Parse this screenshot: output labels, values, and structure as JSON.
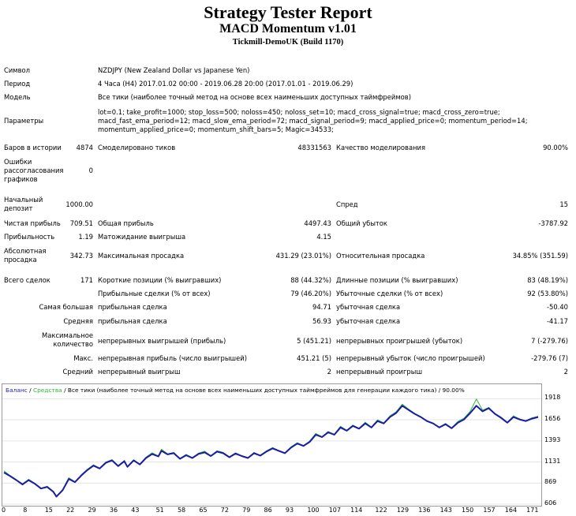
{
  "title": "Strategy Tester Report",
  "expert": "MACD Momentum v1.01",
  "server": "Tickmill-DemoUK (Build 1170)",
  "info": {
    "symbol_label": "Символ",
    "symbol_value": "NZDJPY (New Zealand Dollar vs Japanese Yen)",
    "period_label": "Период",
    "period_value": "4 Часа (H4) 2017.01.02 00:00 - 2019.06.28 20:00 (2017.01.01 - 2019.06.29)",
    "model_label": "Модель",
    "model_value": "Все тики (наиболее точный метод на основе всех наименьших доступных таймфреймов)",
    "params_label": "Параметры",
    "params_value": "lot=0.1; take_profit=1000; stop_loss=500; noloss=450; noloss_set=10; macd_cross_signal=true; macd_cross_zero=true; macd_fast_ema_period=12; macd_slow_ema_period=72; macd_signal_period=9; macd_applied_price=0; momentum_period=14; momentum_applied_price=0; momentum_shift_bars=5; Magic=34533;"
  },
  "stats": {
    "bars_label": "Баров в истории",
    "bars_value": "4874",
    "ticks_label": "Смоделировано тиков",
    "ticks_value": "48331563",
    "quality_label": "Качество моделирования",
    "quality_value": "90.00%",
    "errors_label": "Ошибки рассогласования графиков",
    "errors_value": "0",
    "deposit_label": "Начальный депозит",
    "deposit_value": "1000.00",
    "spread_label": "Спред",
    "spread_value": "15",
    "net_label": "Чистая прибыль",
    "net_value": "709.51",
    "gross_profit_label": "Общая прибыль",
    "gross_profit_value": "4497.43",
    "gross_loss_label": "Общий убыток",
    "gross_loss_value": "-3787.92",
    "pf_label": "Прибыльность",
    "pf_value": "1.19",
    "payoff_label": "Матожидание выигрыша",
    "payoff_value": "4.15",
    "abs_dd_label": "Абсолютная просадка",
    "abs_dd_value": "342.73",
    "max_dd_label": "Максимальная просадка",
    "max_dd_value": "431.29 (23.01%)",
    "rel_dd_label": "Относительная просадка",
    "rel_dd_value": "34.85% (351.59)",
    "total_label": "Всего сделок",
    "total_value": "171",
    "short_label": "Короткие позиции (% выигравших)",
    "short_value": "88 (44.32%)",
    "long_label": "Длинные позиции (% выигравших)",
    "long_value": "83 (48.19%)",
    "profit_trades_label": "Прибыльные сделки (% от всех)",
    "profit_trades_value": "79 (46.20%)",
    "loss_trades_label": "Убыточные сделки (% от всех)",
    "loss_trades_value": "92 (53.80%)",
    "largest_label": "Самая большая",
    "largest_profit_label": "прибыльная сделка",
    "largest_profit_value": "94.71",
    "largest_loss_label": "убыточная сделка",
    "largest_loss_value": "-50.40",
    "average_label": "Средняя",
    "average_profit_label": "прибыльная сделка",
    "average_profit_value": "56.93",
    "average_loss_label": "убыточная сделка",
    "average_loss_value": "-41.17",
    "maxcount_label": "Максимальное количество",
    "maxcount_wins_label": "непрерывных выигрышей (прибыль)",
    "maxcount_wins_value": "5 (451.21)",
    "maxcount_losses_label": "непрерывных проигрышей (убыток)",
    "maxcount_losses_value": "7 (-279.76)",
    "max_label": "Макс.",
    "max_profit_label": "непрерывная прибыль (число выигрышей)",
    "max_profit_value": "451.21 (5)",
    "max_loss_label": "непрерывный убыток (число проигрышей)",
    "max_loss_value": "-279.76 (7)",
    "avg_label": "Средний",
    "avg_wins_label": "непрерывный выигрыш",
    "avg_wins_value": "2",
    "avg_losses_label": "непрерывный проигрыш",
    "avg_losses_value": "2"
  },
  "colors": {
    "balance": "#1c1ca8",
    "equity": "#2db82d",
    "frame": "#9a9a9a",
    "grid": "#e4e4e4"
  },
  "chart_data": {
    "type": "line",
    "legend_balance": "Баланс",
    "legend_sep": " / ",
    "legend_equity": "Средства",
    "legend_text": " / Все тики (наиболее точный метод на основе всех наименьших доступных таймфреймов для генерации каждого тика) / 90.00%",
    "ylim": [
      606,
      2000
    ],
    "y_ticks": [
      "1918",
      "1656",
      "1393",
      "1131",
      "869",
      "606"
    ],
    "x_ticks": [
      "0",
      "8",
      "15",
      "22",
      "29",
      "36",
      "43",
      "51",
      "58",
      "65",
      "72",
      "79",
      "86",
      "93",
      "100",
      "107",
      "114",
      "122",
      "129",
      "136",
      "143",
      "150",
      "157",
      "164",
      "171"
    ],
    "xlim": [
      0,
      173
    ],
    "balance": [
      [
        0,
        1000
      ],
      [
        2,
        955
      ],
      [
        4,
        905
      ],
      [
        6,
        850
      ],
      [
        8,
        905
      ],
      [
        10,
        860
      ],
      [
        12,
        800
      ],
      [
        14,
        820
      ],
      [
        16,
        760
      ],
      [
        17,
        700
      ],
      [
        19,
        780
      ],
      [
        21,
        920
      ],
      [
        23,
        880
      ],
      [
        25,
        960
      ],
      [
        27,
        1030
      ],
      [
        29,
        1085
      ],
      [
        31,
        1050
      ],
      [
        33,
        1120
      ],
      [
        35,
        1150
      ],
      [
        37,
        1080
      ],
      [
        39,
        1140
      ],
      [
        40,
        1070
      ],
      [
        42,
        1150
      ],
      [
        44,
        1100
      ],
      [
        46,
        1180
      ],
      [
        48,
        1230
      ],
      [
        50,
        1200
      ],
      [
        51,
        1270
      ],
      [
        53,
        1225
      ],
      [
        55,
        1240
      ],
      [
        57,
        1170
      ],
      [
        59,
        1215
      ],
      [
        61,
        1180
      ],
      [
        63,
        1230
      ],
      [
        65,
        1250
      ],
      [
        67,
        1205
      ],
      [
        69,
        1260
      ],
      [
        71,
        1240
      ],
      [
        73,
        1190
      ],
      [
        75,
        1235
      ],
      [
        77,
        1205
      ],
      [
        79,
        1180
      ],
      [
        81,
        1240
      ],
      [
        83,
        1210
      ],
      [
        85,
        1260
      ],
      [
        87,
        1300
      ],
      [
        89,
        1270
      ],
      [
        91,
        1240
      ],
      [
        93,
        1310
      ],
      [
        95,
        1360
      ],
      [
        97,
        1330
      ],
      [
        99,
        1380
      ],
      [
        101,
        1470
      ],
      [
        103,
        1440
      ],
      [
        105,
        1500
      ],
      [
        107,
        1470
      ],
      [
        109,
        1560
      ],
      [
        111,
        1520
      ],
      [
        113,
        1580
      ],
      [
        115,
        1545
      ],
      [
        117,
        1610
      ],
      [
        119,
        1560
      ],
      [
        121,
        1640
      ],
      [
        123,
        1610
      ],
      [
        125,
        1690
      ],
      [
        127,
        1740
      ],
      [
        129,
        1830
      ],
      [
        131,
        1780
      ],
      [
        133,
        1730
      ],
      [
        135,
        1690
      ],
      [
        137,
        1640
      ],
      [
        139,
        1610
      ],
      [
        141,
        1560
      ],
      [
        143,
        1600
      ],
      [
        145,
        1550
      ],
      [
        147,
        1620
      ],
      [
        149,
        1660
      ],
      [
        151,
        1740
      ],
      [
        153,
        1830
      ],
      [
        155,
        1760
      ],
      [
        157,
        1800
      ],
      [
        159,
        1730
      ],
      [
        161,
        1680
      ],
      [
        163,
        1620
      ],
      [
        165,
        1690
      ],
      [
        167,
        1660
      ],
      [
        169,
        1640
      ],
      [
        171,
        1670
      ],
      [
        173,
        1690
      ]
    ],
    "equity": [
      [
        0,
        1020
      ],
      [
        2,
        960
      ],
      [
        4,
        910
      ],
      [
        6,
        860
      ],
      [
        8,
        915
      ],
      [
        10,
        865
      ],
      [
        12,
        805
      ],
      [
        14,
        830
      ],
      [
        16,
        765
      ],
      [
        17,
        705
      ],
      [
        19,
        790
      ],
      [
        21,
        935
      ],
      [
        23,
        885
      ],
      [
        25,
        970
      ],
      [
        27,
        1040
      ],
      [
        29,
        1095
      ],
      [
        31,
        1055
      ],
      [
        33,
        1130
      ],
      [
        35,
        1160
      ],
      [
        37,
        1085
      ],
      [
        39,
        1150
      ],
      [
        40,
        1075
      ],
      [
        42,
        1160
      ],
      [
        44,
        1105
      ],
      [
        46,
        1190
      ],
      [
        48,
        1245
      ],
      [
        50,
        1205
      ],
      [
        51,
        1290
      ],
      [
        53,
        1230
      ],
      [
        55,
        1250
      ],
      [
        57,
        1175
      ],
      [
        59,
        1225
      ],
      [
        61,
        1185
      ],
      [
        63,
        1240
      ],
      [
        65,
        1265
      ],
      [
        67,
        1210
      ],
      [
        69,
        1270
      ],
      [
        71,
        1250
      ],
      [
        73,
        1195
      ],
      [
        75,
        1245
      ],
      [
        77,
        1210
      ],
      [
        79,
        1185
      ],
      [
        81,
        1250
      ],
      [
        83,
        1215
      ],
      [
        85,
        1270
      ],
      [
        87,
        1310
      ],
      [
        89,
        1275
      ],
      [
        91,
        1245
      ],
      [
        93,
        1320
      ],
      [
        95,
        1370
      ],
      [
        97,
        1335
      ],
      [
        99,
        1390
      ],
      [
        101,
        1485
      ],
      [
        103,
        1445
      ],
      [
        105,
        1510
      ],
      [
        107,
        1475
      ],
      [
        109,
        1575
      ],
      [
        111,
        1525
      ],
      [
        113,
        1590
      ],
      [
        115,
        1550
      ],
      [
        117,
        1625
      ],
      [
        119,
        1565
      ],
      [
        121,
        1655
      ],
      [
        123,
        1615
      ],
      [
        125,
        1705
      ],
      [
        127,
        1755
      ],
      [
        129,
        1850
      ],
      [
        131,
        1790
      ],
      [
        133,
        1735
      ],
      [
        135,
        1695
      ],
      [
        137,
        1645
      ],
      [
        139,
        1615
      ],
      [
        141,
        1565
      ],
      [
        143,
        1610
      ],
      [
        145,
        1555
      ],
      [
        147,
        1635
      ],
      [
        149,
        1675
      ],
      [
        151,
        1760
      ],
      [
        153,
        1915
      ],
      [
        155,
        1775
      ],
      [
        157,
        1810
      ],
      [
        159,
        1735
      ],
      [
        161,
        1690
      ],
      [
        163,
        1625
      ],
      [
        165,
        1705
      ],
      [
        167,
        1665
      ],
      [
        169,
        1645
      ],
      [
        171,
        1680
      ],
      [
        173,
        1700
      ]
    ]
  }
}
